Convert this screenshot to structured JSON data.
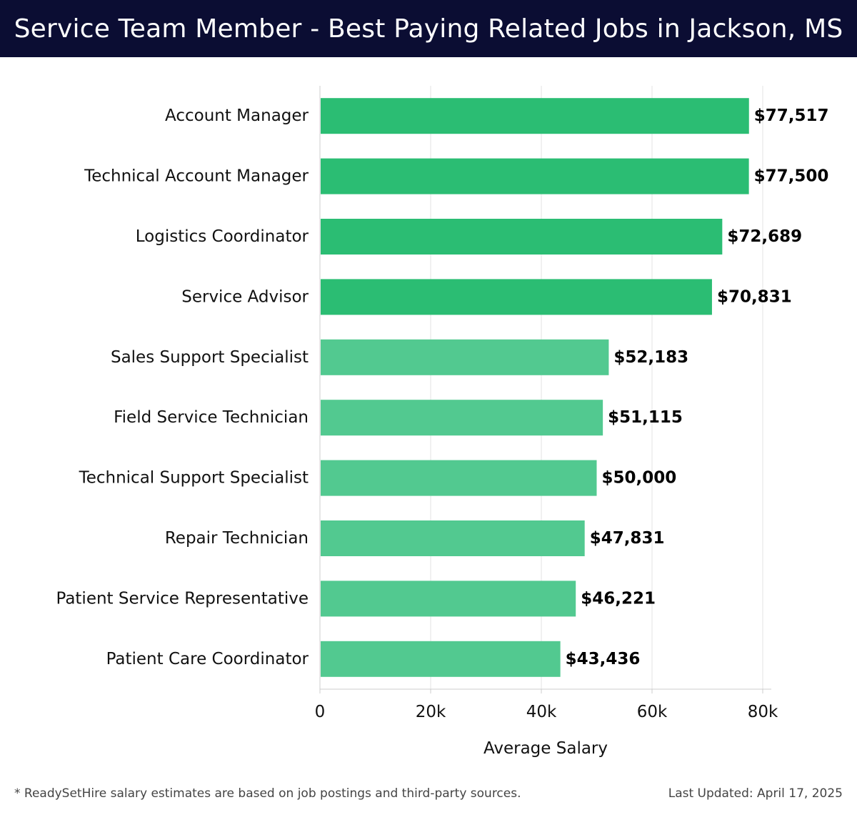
{
  "header": {
    "title": "Service Team Member - Best Paying Related Jobs in Jackson, MS"
  },
  "colors": {
    "header_bg": "#0b0d33",
    "bar_top": "#2bbd73",
    "bar_lower": "#52c990",
    "grid": "#e3e3e3",
    "axis": "#cccccc",
    "text": "#111111"
  },
  "chart_data": {
    "type": "bar",
    "orientation": "horizontal",
    "categories": [
      "Account Manager",
      "Technical Account Manager",
      "Logistics Coordinator",
      "Service Advisor",
      "Sales Support Specialist",
      "Field Service Technician",
      "Technical Support Specialist",
      "Repair Technician",
      "Patient Service Representative",
      "Patient Care Coordinator"
    ],
    "values": [
      77517,
      77500,
      72689,
      70831,
      52183,
      51115,
      50000,
      47831,
      46221,
      43436
    ],
    "value_labels": [
      "$77,517",
      "$77,500",
      "$72,689",
      "$70,831",
      "$52,183",
      "$51,115",
      "$50,000",
      "$47,831",
      "$46,221",
      "$43,436"
    ],
    "highlighted_top_count": 4,
    "xlabel": "Average Salary",
    "ylabel": "",
    "xlim": [
      0,
      80000
    ],
    "xticks": [
      0,
      20000,
      40000,
      60000,
      80000
    ],
    "xtick_labels": [
      "0",
      "20k",
      "40k",
      "60k",
      "80k"
    ],
    "grid": true
  },
  "footer": {
    "note": "* ReadySetHire salary estimates are based on job postings and third-party sources.",
    "updated": "Last Updated: April 17, 2025"
  }
}
